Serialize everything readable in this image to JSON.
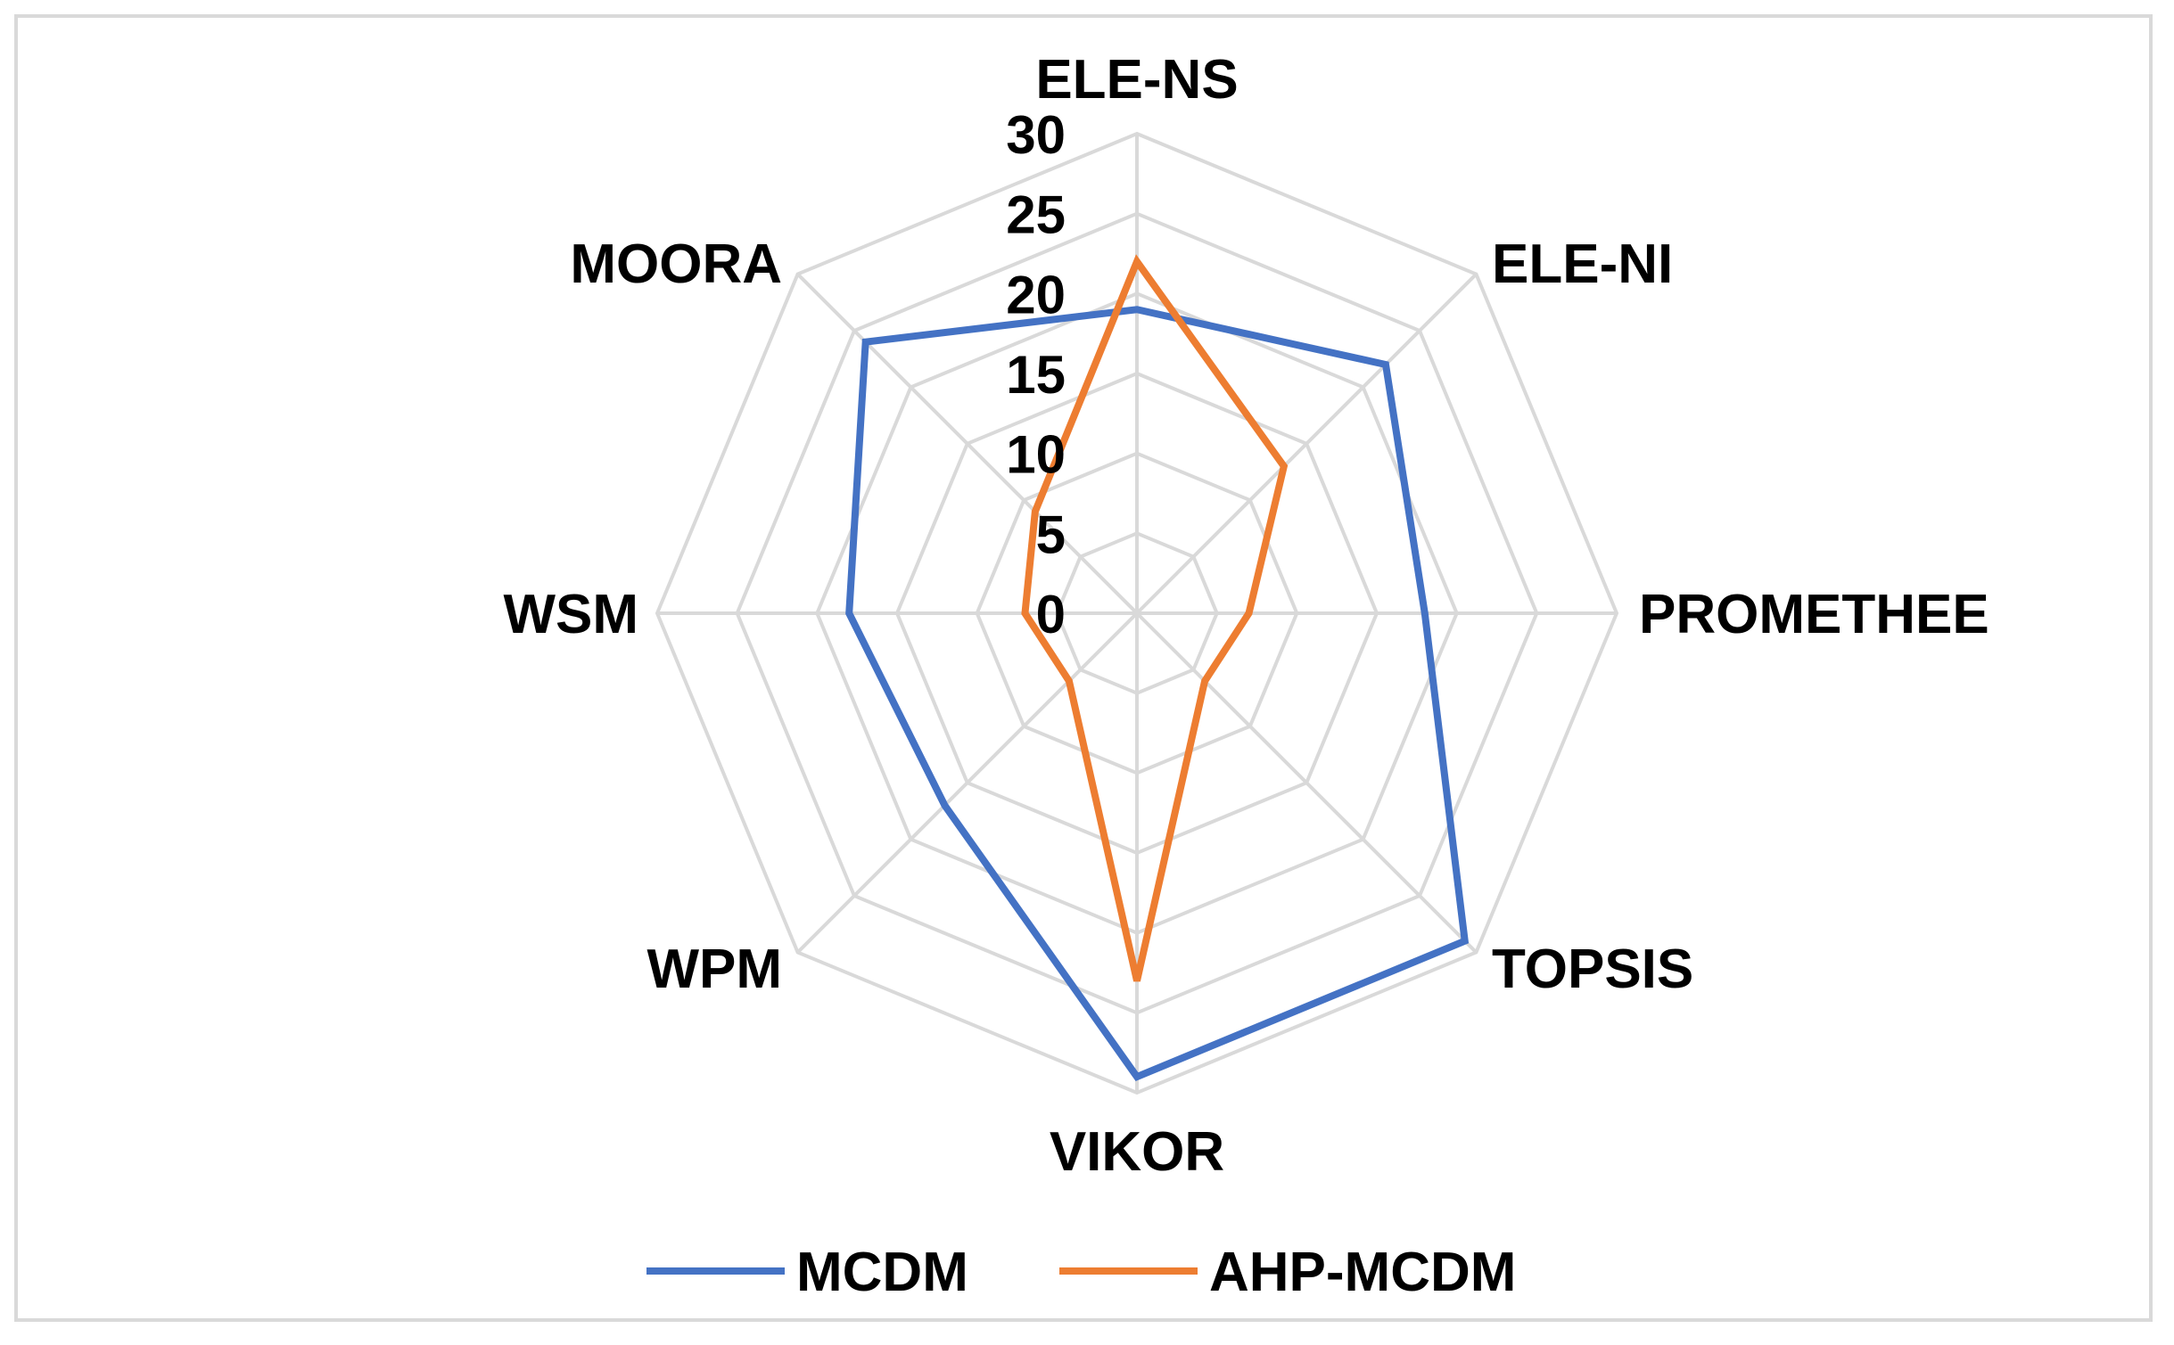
{
  "chart_data": {
    "type": "radar",
    "categories": [
      "ELE-NS",
      "ELE-NI",
      "PROMETHEE",
      "TOPSIS",
      "VIKOR",
      "WPM",
      "WSM",
      "MOORA"
    ],
    "series": [
      {
        "name": "MCDM",
        "color": "#4472c4",
        "values": [
          19,
          22,
          18,
          29,
          29,
          17,
          18,
          24
        ]
      },
      {
        "name": "AHP-MCDM",
        "color": "#ed7d31",
        "values": [
          22,
          13,
          7,
          6,
          23,
          6,
          7,
          9
        ]
      }
    ],
    "rlim": [
      0,
      30
    ],
    "ticks": [
      "0",
      "5",
      "10",
      "15",
      "20",
      "25",
      "30"
    ],
    "grid": true,
    "grid_color": "#d9d9d9",
    "legend": "bottom"
  }
}
